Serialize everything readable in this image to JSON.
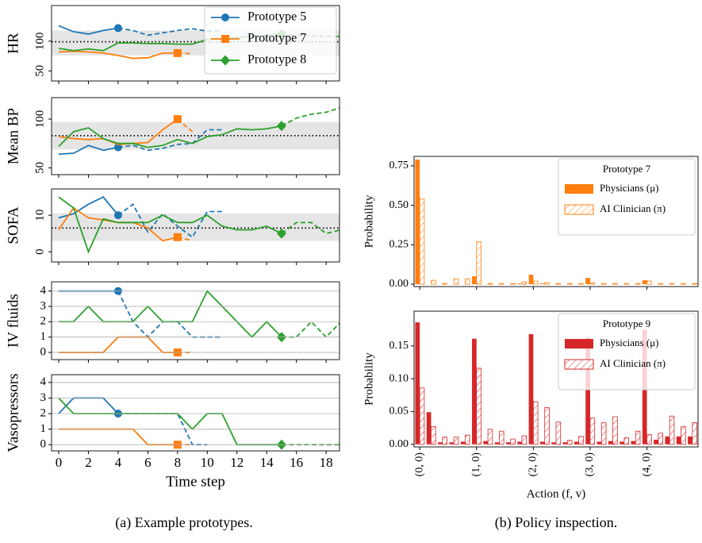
{
  "captions": [
    "(a) Example prototypes.",
    "(b) Policy inspection."
  ],
  "chart_data": [
    {
      "type": "line",
      "ylabel": "HR",
      "x": [
        0,
        1,
        2,
        3,
        4,
        5,
        6,
        7,
        8,
        9,
        10,
        11,
        12,
        13,
        14,
        15,
        16,
        17,
        18,
        19
      ],
      "xlim": [
        -0.48,
        18.9
      ],
      "xticks": [
        0,
        2,
        4,
        6,
        8,
        10,
        12,
        14,
        16,
        18
      ],
      "show_xticklabels": false,
      "ylim": [
        33,
        160
      ],
      "yticks": [
        50,
        100
      ],
      "ytick_rotation": 90,
      "grid": false,
      "band": [
        76,
        118
      ],
      "reference": 99,
      "legend": "upper right",
      "series": [
        {
          "name": "Prototype 5",
          "color": "#1f77b4",
          "marker": "circle",
          "highlight_x": 4,
          "values": [
            126,
            116,
            112,
            118,
            122,
            118,
            110,
            114,
            118,
            121,
            117,
            118,
            null,
            null,
            null,
            null,
            null,
            null,
            null,
            null
          ]
        },
        {
          "name": "Prototype 7",
          "color": "#ff7f0e",
          "marker": "square",
          "highlight_x": 8,
          "values": [
            82,
            83,
            82,
            80,
            76,
            71,
            72,
            80,
            80,
            79,
            null,
            null,
            null,
            null,
            null,
            null,
            null,
            null,
            null,
            null
          ]
        },
        {
          "name": "Prototype 8",
          "color": "#2ca02c",
          "marker": "diamond",
          "highlight_x": 15,
          "values": [
            88,
            84,
            87,
            84,
            97,
            97,
            96,
            96,
            95,
            95,
            103,
            104,
            106,
            108,
            110,
            112,
            110,
            109,
            108,
            108
          ]
        }
      ]
    },
    {
      "type": "line",
      "ylabel": "Mean BP",
      "x": [
        0,
        1,
        2,
        3,
        4,
        5,
        6,
        7,
        8,
        9,
        10,
        11,
        12,
        13,
        14,
        15,
        16,
        17,
        18,
        19
      ],
      "xlim": [
        -0.48,
        18.9
      ],
      "xticks": [
        0,
        2,
        4,
        6,
        8,
        10,
        12,
        14,
        16,
        18
      ],
      "show_xticklabels": false,
      "ylim": [
        43,
        122
      ],
      "yticks": [
        50,
        100
      ],
      "ytick_rotation": 90,
      "grid": false,
      "band": [
        69,
        97
      ],
      "reference": 83,
      "series": [
        {
          "color": "#1f77b4",
          "marker": "circle",
          "highlight_x": 4,
          "values": [
            64,
            65,
            73,
            68,
            71,
            73,
            68,
            70,
            74,
            75,
            89,
            89,
            null,
            null,
            null,
            null,
            null,
            null,
            null,
            null
          ]
        },
        {
          "color": "#ff7f0e",
          "marker": "square",
          "highlight_x": 8,
          "values": [
            82,
            80,
            79,
            80,
            74,
            75,
            76,
            89,
            100,
            87,
            null,
            null,
            null,
            null,
            null,
            null,
            null,
            null,
            null,
            null
          ]
        },
        {
          "color": "#2ca02c",
          "marker": "diamond",
          "highlight_x": 15,
          "values": [
            72,
            87,
            91,
            80,
            75,
            75,
            71,
            73,
            79,
            75,
            82,
            84,
            90,
            89,
            90,
            93,
            101,
            105,
            107,
            112
          ]
        }
      ]
    },
    {
      "type": "line",
      "ylabel": "SOFA",
      "x": [
        0,
        1,
        2,
        3,
        4,
        5,
        6,
        7,
        8,
        9,
        10,
        11,
        12,
        13,
        14,
        15,
        16,
        17,
        18,
        19
      ],
      "xlim": [
        -0.48,
        18.9
      ],
      "xticks": [
        0,
        2,
        4,
        6,
        8,
        10,
        12,
        14,
        16,
        18
      ],
      "show_xticklabels": false,
      "ylim": [
        -2.8,
        17.2
      ],
      "yticks": [
        0,
        10
      ],
      "ytick_rotation": 90,
      "grid": false,
      "band": [
        3,
        10.5
      ],
      "reference": 6.5,
      "series": [
        {
          "color": "#1f77b4",
          "marker": "circle",
          "highlight_x": 4,
          "values": [
            9.3,
            10.4,
            13,
            15,
            10,
            13,
            5.4,
            10.4,
            7,
            4,
            11,
            11,
            null,
            null,
            null,
            null,
            null,
            null,
            null,
            null
          ]
        },
        {
          "color": "#ff7f0e",
          "marker": "square",
          "highlight_x": 8,
          "values": [
            6,
            12,
            9.3,
            8.7,
            8,
            8,
            6.5,
            3,
            4,
            3,
            null,
            null,
            null,
            null,
            null,
            null,
            null,
            null,
            null,
            null
          ]
        },
        {
          "color": "#2ca02c",
          "marker": "diamond",
          "highlight_x": 15,
          "values": [
            15,
            12,
            0,
            9,
            8,
            8,
            8,
            10,
            8,
            8,
            10,
            7,
            6,
            6,
            7,
            5,
            8,
            8,
            5,
            6
          ]
        }
      ]
    },
    {
      "type": "line",
      "ylabel": "IV fluids",
      "x": [
        0,
        1,
        2,
        3,
        4,
        5,
        6,
        7,
        8,
        9,
        10,
        11,
        12,
        13,
        14,
        15,
        16,
        17,
        18,
        19
      ],
      "xlim": [
        -0.48,
        18.9
      ],
      "xticks": [
        0,
        2,
        4,
        6,
        8,
        10,
        12,
        14,
        16,
        18
      ],
      "show_xticklabels": false,
      "ylim": [
        -0.47,
        4.6
      ],
      "yticks": [
        0,
        1,
        2,
        3,
        4
      ],
      "ytick_rotation": 0,
      "grid": true,
      "series": [
        {
          "color": "#1f77b4",
          "marker": "circle",
          "highlight_x": 4,
          "values": [
            4,
            4,
            4,
            4,
            4,
            2,
            1,
            2,
            2,
            1,
            1,
            1,
            null,
            null,
            null,
            null,
            null,
            null,
            null,
            null
          ]
        },
        {
          "color": "#ff7f0e",
          "marker": "square",
          "highlight_x": 8,
          "values": [
            0,
            0,
            0,
            0,
            1,
            1,
            1,
            0,
            0,
            0,
            null,
            null,
            null,
            null,
            null,
            null,
            null,
            null,
            null,
            null
          ]
        },
        {
          "color": "#2ca02c",
          "marker": "diamond",
          "highlight_x": 15,
          "values": [
            2,
            2,
            3,
            2,
            2,
            2,
            3,
            2,
            2,
            2,
            4,
            3,
            2,
            1,
            2,
            1,
            1,
            2,
            1,
            2
          ]
        }
      ]
    },
    {
      "type": "line",
      "ylabel": "Vasopressors",
      "xlabel": "Time step",
      "x": [
        0,
        1,
        2,
        3,
        4,
        5,
        6,
        7,
        8,
        9,
        10,
        11,
        12,
        13,
        14,
        15,
        16,
        17,
        18,
        19
      ],
      "xlim": [
        -0.48,
        18.9
      ],
      "xticks": [
        0,
        2,
        4,
        6,
        8,
        10,
        12,
        14,
        16,
        18
      ],
      "show_xticklabels": true,
      "ylim": [
        -0.4,
        4.5
      ],
      "yticks": [
        0,
        1,
        2,
        3,
        4
      ],
      "ytick_rotation": 0,
      "grid": true,
      "series": [
        {
          "color": "#1f77b4",
          "marker": "circle",
          "highlight_x": 4,
          "values": [
            2,
            3,
            3,
            3,
            2,
            2,
            2,
            2,
            2,
            0,
            0,
            null,
            null,
            null,
            null,
            null,
            null,
            null,
            null,
            null
          ]
        },
        {
          "color": "#ff7f0e",
          "marker": "square",
          "highlight_x": 8,
          "values": [
            1,
            1,
            1,
            1,
            1,
            1,
            0,
            0,
            0,
            0,
            null,
            null,
            null,
            null,
            null,
            null,
            null,
            null,
            null,
            null
          ]
        },
        {
          "color": "#2ca02c",
          "marker": "diamond",
          "highlight_x": 15,
          "values": [
            3,
            2,
            2,
            2,
            2,
            2,
            2,
            2,
            2,
            1,
            2,
            2,
            0,
            0,
            0,
            0,
            0,
            0,
            0,
            0
          ]
        }
      ]
    },
    {
      "type": "bar",
      "ylabel": "Probability",
      "legend": "upper right",
      "legend_title": "Prototype 7",
      "categories": [
        "(0, 0)",
        null,
        null,
        null,
        null,
        "(1, 0)",
        null,
        null,
        null,
        null,
        "(2, 0)",
        null,
        null,
        null,
        null,
        "(3, 0)",
        null,
        null,
        null,
        null,
        "(4, 0)",
        null,
        null,
        null,
        null
      ],
      "show_xticklabels": false,
      "ylim": [
        -0.015,
        0.81
      ],
      "yticks": [
        {
          "value": 0,
          "label": "0.00"
        },
        {
          "value": 0.25,
          "label": "0.25"
        },
        {
          "value": 0.5,
          "label": "0.50"
        },
        {
          "value": 0.75,
          "label": "0.75"
        }
      ],
      "series": [
        {
          "name": "Physicians (μ)",
          "color": "#ff7f0e",
          "hatch": false,
          "values": [
            0.79,
            0,
            0,
            0,
            0,
            0.05,
            0,
            0,
            0,
            0.005,
            0.06,
            0.005,
            0,
            0,
            0,
            0.04,
            0,
            0,
            0,
            0,
            0.025,
            0,
            0,
            0,
            0
          ]
        },
        {
          "name": "AI Clinician (π)",
          "color": "#ff7f0e",
          "hatch": true,
          "values": [
            0.54,
            0.025,
            0.005,
            0.035,
            0.035,
            0.27,
            0.005,
            0.005,
            0.005,
            0.015,
            0.02,
            0.01,
            0.005,
            0.005,
            0.005,
            0.01,
            0.005,
            0.005,
            0.005,
            0.005,
            0.02,
            0.005,
            0.005,
            0.005,
            0.005
          ]
        }
      ]
    },
    {
      "type": "bar",
      "ylabel": "Probability",
      "xlabel": "Action (f, v)",
      "legend": "upper right",
      "legend_title": "Prototype 9",
      "categories": [
        "(0, 0)",
        null,
        null,
        null,
        null,
        "(1, 0)",
        null,
        null,
        null,
        null,
        "(2, 0)",
        null,
        null,
        null,
        null,
        "(3, 0)",
        null,
        null,
        null,
        null,
        "(4, 0)",
        null,
        null,
        null,
        null
      ],
      "show_xticklabels": true,
      "ylim": [
        -0.004,
        0.203
      ],
      "yticks": [
        {
          "value": 0,
          "label": "0.00"
        },
        {
          "value": 0.05,
          "label": "0.05"
        },
        {
          "value": 0.1,
          "label": "0.10"
        },
        {
          "value": 0.15,
          "label": "0.15"
        }
      ],
      "series": [
        {
          "name": "Physicians (μ)",
          "color": "#d62728",
          "hatch": false,
          "values": [
            0.186,
            0.049,
            0.003,
            0.003,
            0.004,
            0.161,
            0.005,
            0.003,
            0.003,
            0.004,
            0.168,
            0.004,
            0.003,
            0.003,
            0.004,
            0.163,
            0.004,
            0.005,
            0.004,
            0.005,
            0.175,
            0.007,
            0.012,
            0.012,
            0.012
          ]
        },
        {
          "name": "AI Clinician (π)",
          "color": "#d62728",
          "hatch": true,
          "values": [
            0.086,
            0.027,
            0.011,
            0.011,
            0.014,
            0.116,
            0.023,
            0.02,
            0.008,
            0.013,
            0.065,
            0.056,
            0.034,
            0.006,
            0.012,
            0.04,
            0.033,
            0.042,
            0.01,
            0.02,
            0.015,
            0.017,
            0.043,
            0.027,
            0.033
          ]
        }
      ]
    }
  ]
}
